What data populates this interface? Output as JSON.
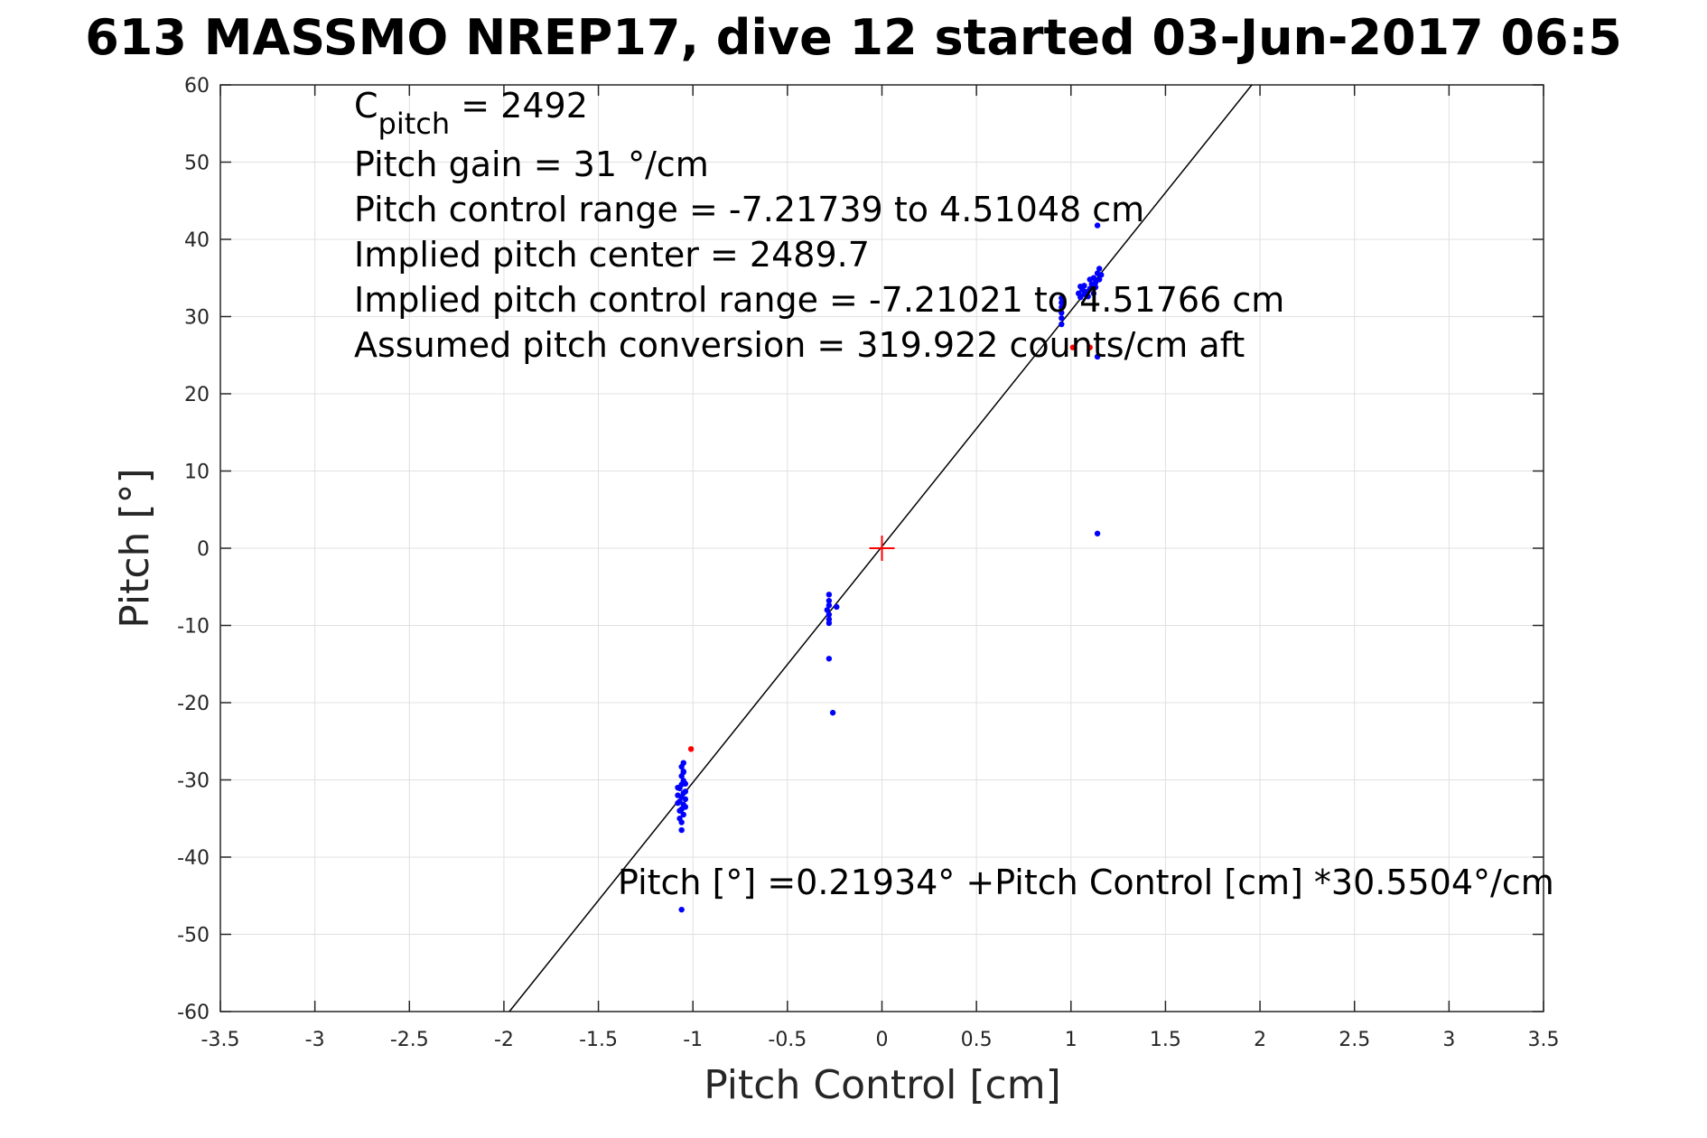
{
  "chart_data": {
    "type": "scatter",
    "title": "613 MASSMO NREP17, dive 12 started 03-Jun-2017 06:5",
    "xlabel": "Pitch Control [cm]",
    "ylabel": "Pitch [°]",
    "xlim": [
      -3.5,
      3.5
    ],
    "ylim": [
      -60,
      60
    ],
    "xticks": [
      -3.5,
      -3,
      -2.5,
      -2,
      -1.5,
      -1,
      -0.5,
      0,
      0.5,
      1,
      1.5,
      2,
      2.5,
      3,
      3.5
    ],
    "yticks": [
      -60,
      -50,
      -40,
      -30,
      -20,
      -10,
      0,
      10,
      20,
      30,
      40,
      50,
      60
    ],
    "xtick_labels": [
      "-3.5",
      "-3",
      "-2.5",
      "-2",
      "-1.5",
      "-1",
      "-0.5",
      "0",
      "0.5",
      "1",
      "1.5",
      "2",
      "2.5",
      "3",
      "3.5"
    ],
    "ytick_labels": [
      "-60",
      "-50",
      "-40",
      "-30",
      "-20",
      "-10",
      "0",
      "10",
      "20",
      "30",
      "40",
      "50",
      "60"
    ],
    "grid": true,
    "colors": {
      "data": "#0000ff",
      "flagged": "#ff0000",
      "fit": "#000000",
      "grid": "#e0e0e0",
      "center": "#ff0000"
    },
    "fit_line": {
      "intercept": 0.21934,
      "slope": 30.5504
    },
    "center_marker": {
      "x": 0,
      "y": 0
    },
    "annotations": {
      "c_pitch_main": "C",
      "c_pitch_sub": "pitch",
      "c_pitch_rest": " = 2492",
      "lines": [
        "Pitch gain = 31 °/cm",
        "Pitch control range = -7.21739 to 4.51048 cm",
        "Implied pitch center = 2489.7",
        "Implied pitch control range = -7.21021 to 4.51766 cm",
        "Assumed pitch conversion = 319.922 counts/cm aft"
      ],
      "fit_equation": "Pitch [°] =0.21934° +Pitch Control [cm] *30.5504°/cm"
    },
    "series": [
      {
        "color": "#0000ff",
        "points": [
          [
            -1.06,
            -36.5
          ],
          [
            -1.05,
            -34.5
          ],
          [
            -1.06,
            -33.8
          ],
          [
            -1.05,
            -33.2
          ],
          [
            -1.07,
            -32.8
          ],
          [
            -1.06,
            -32.2
          ],
          [
            -1.05,
            -31.7
          ],
          [
            -1.07,
            -31.1
          ],
          [
            -1.06,
            -30.6
          ],
          [
            -1.05,
            -30.1
          ],
          [
            -1.06,
            -29.5
          ],
          [
            -1.05,
            -28.9
          ],
          [
            -1.06,
            -28.3
          ],
          [
            -1.05,
            -27.8
          ],
          [
            -1.07,
            -34.0
          ],
          [
            -1.08,
            -33.0
          ],
          [
            -1.08,
            -32.0
          ],
          [
            -1.08,
            -31.0
          ],
          [
            -1.04,
            -33.5
          ],
          [
            -1.04,
            -32.5
          ],
          [
            -1.04,
            -31.5
          ],
          [
            -1.04,
            -30.5
          ],
          [
            -1.07,
            -35.0
          ],
          [
            -1.06,
            -35.5
          ],
          [
            -1.05,
            -29.0
          ],
          [
            -1.06,
            -46.8
          ],
          [
            -0.28,
            -6.0
          ],
          [
            -0.28,
            -6.8
          ],
          [
            -0.28,
            -7.4
          ],
          [
            -0.29,
            -8.0
          ],
          [
            -0.28,
            -8.6
          ],
          [
            -0.28,
            -9.2
          ],
          [
            -0.28,
            -9.7
          ],
          [
            -0.24,
            -7.6
          ],
          [
            -0.28,
            -14.3
          ],
          [
            -0.26,
            -21.3
          ],
          [
            0.95,
            29.0
          ],
          [
            0.95,
            29.8
          ],
          [
            0.95,
            30.5
          ],
          [
            0.95,
            31.2
          ],
          [
            0.95,
            31.8
          ],
          [
            0.95,
            32.4
          ],
          [
            1.04,
            33.0
          ],
          [
            1.05,
            32.5
          ],
          [
            1.06,
            33.5
          ],
          [
            1.07,
            34.0
          ],
          [
            1.08,
            33.2
          ],
          [
            1.09,
            32.6
          ],
          [
            1.1,
            33.6
          ],
          [
            1.11,
            34.2
          ],
          [
            1.12,
            35.0
          ],
          [
            1.13,
            34.4
          ],
          [
            1.14,
            35.6
          ],
          [
            1.15,
            36.2
          ],
          [
            1.16,
            35.4
          ],
          [
            1.13,
            33.8
          ],
          [
            1.1,
            34.8
          ],
          [
            1.07,
            32.9
          ],
          [
            1.05,
            33.9
          ],
          [
            1.12,
            33.0
          ],
          [
            1.15,
            34.8
          ],
          [
            1.14,
            41.8
          ],
          [
            1.14,
            24.8
          ],
          [
            1.14,
            1.9
          ]
        ]
      },
      {
        "color": "#ff0000",
        "points": [
          [
            -1.01,
            -26.0
          ],
          [
            1.01,
            26.0
          ],
          [
            1.1,
            26.0
          ]
        ]
      }
    ]
  }
}
